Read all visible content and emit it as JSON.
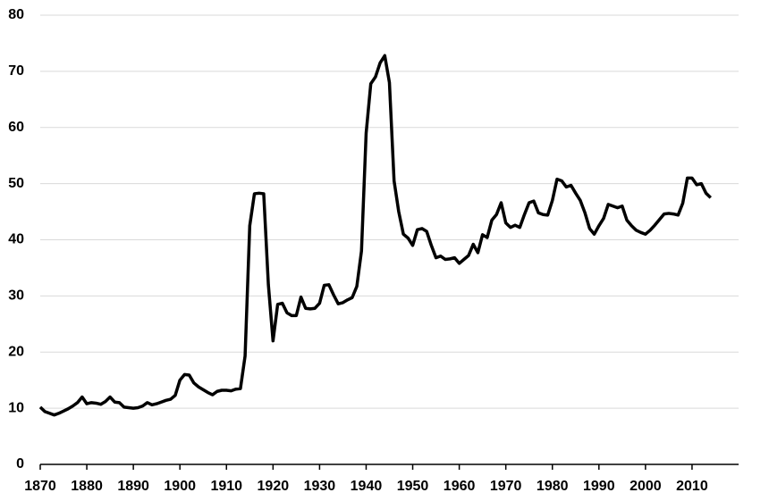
{
  "chart_data": {
    "type": "line",
    "x": [
      1870,
      1871,
      1872,
      1873,
      1874,
      1875,
      1876,
      1877,
      1878,
      1879,
      1880,
      1881,
      1882,
      1883,
      1884,
      1885,
      1886,
      1887,
      1888,
      1889,
      1890,
      1891,
      1892,
      1893,
      1894,
      1895,
      1896,
      1897,
      1898,
      1899,
      1900,
      1901,
      1902,
      1903,
      1904,
      1905,
      1906,
      1907,
      1908,
      1909,
      1910,
      1911,
      1912,
      1913,
      1914,
      1915,
      1916,
      1917,
      1918,
      1919,
      1920,
      1921,
      1922,
      1923,
      1924,
      1925,
      1926,
      1927,
      1928,
      1929,
      1930,
      1931,
      1932,
      1933,
      1934,
      1935,
      1936,
      1937,
      1938,
      1939,
      1940,
      1941,
      1942,
      1943,
      1944,
      1945,
      1946,
      1947,
      1948,
      1949,
      1950,
      1951,
      1952,
      1953,
      1954,
      1955,
      1956,
      1957,
      1958,
      1959,
      1960,
      1961,
      1962,
      1963,
      1964,
      1965,
      1966,
      1967,
      1968,
      1969,
      1970,
      1971,
      1972,
      1973,
      1974,
      1975,
      1976,
      1977,
      1978,
      1979,
      1980,
      1981,
      1982,
      1983,
      1984,
      1985,
      1986,
      1987,
      1988,
      1989,
      1990,
      1991,
      1992,
      1993,
      1994,
      1995,
      1996,
      1997,
      1998,
      1999,
      2000,
      2001,
      2002,
      2003,
      2004,
      2005,
      2006,
      2007,
      2008,
      2009,
      2010,
      2011,
      2012,
      2013,
      2014
    ],
    "values": [
      10.2,
      9.4,
      9.1,
      8.8,
      9.1,
      9.5,
      9.9,
      10.4,
      11.0,
      12.0,
      10.8,
      11.0,
      10.9,
      10.7,
      11.2,
      12.0,
      11.1,
      11.0,
      10.2,
      10.1,
      10.0,
      10.1,
      10.4,
      11.0,
      10.6,
      10.8,
      11.1,
      11.4,
      11.6,
      12.3,
      15.0,
      16.0,
      15.9,
      14.5,
      13.8,
      13.3,
      12.8,
      12.4,
      13.0,
      13.2,
      13.2,
      13.1,
      13.4,
      13.5,
      19.3,
      42.5,
      48.2,
      48.3,
      48.2,
      32.0,
      22.0,
      28.5,
      28.7,
      27.0,
      26.5,
      26.5,
      29.8,
      27.8,
      27.7,
      27.8,
      28.7,
      31.9,
      32.0,
      30.2,
      28.6,
      28.8,
      29.3,
      29.7,
      31.7,
      38.0,
      59.0,
      67.8,
      69.0,
      71.5,
      72.8,
      68.0,
      50.5,
      45.0,
      41.0,
      40.3,
      39.0,
      41.8,
      42.0,
      41.5,
      39.0,
      36.8,
      37.1,
      36.5,
      36.6,
      36.8,
      35.8,
      36.5,
      37.2,
      39.2,
      37.7,
      40.9,
      40.4,
      43.5,
      44.5,
      46.6,
      43.0,
      42.2,
      42.6,
      42.2,
      44.5,
      46.6,
      46.9,
      44.8,
      44.5,
      44.4,
      47.0,
      50.8,
      50.5,
      49.4,
      49.7,
      48.3,
      47.0,
      44.8,
      42.0,
      41.0,
      42.5,
      43.8,
      46.3,
      46.0,
      45.7,
      46.0,
      43.5,
      42.5,
      41.7,
      41.3,
      41.0,
      41.7,
      42.6,
      43.6,
      44.6,
      44.7,
      44.6,
      44.4,
      46.5,
      51.0,
      51.0,
      49.8,
      50.0,
      48.3,
      47.5
    ],
    "color": "#000000",
    "xlim": [
      1870,
      2020
    ],
    "xticks": [
      1870,
      1880,
      1890,
      1900,
      1910,
      1920,
      1930,
      1940,
      1950,
      1960,
      1970,
      1980,
      1990,
      2000,
      2010
    ],
    "ylim": [
      0,
      80
    ],
    "yticks": [
      0,
      10,
      20,
      30,
      40,
      50,
      60,
      70,
      80
    ],
    "grid": true
  }
}
